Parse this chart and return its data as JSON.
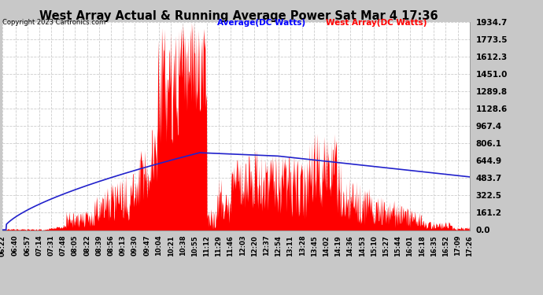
{
  "title": "West Array Actual & Running Average Power Sat Mar 4 17:36",
  "copyright": "Copyright 2023 Cartronics.com",
  "legend_avg": "Average(DC Watts)",
  "legend_west": "West Array(DC Watts)",
  "ymax": 1934.7,
  "ymin": 0.0,
  "yticks": [
    0.0,
    161.2,
    322.5,
    483.7,
    644.9,
    806.1,
    967.4,
    1128.6,
    1289.8,
    1451.0,
    1612.3,
    1773.5,
    1934.7
  ],
  "bg_color": "#c8c8c8",
  "plot_bg_color": "#ffffff",
  "grid_color": "#aaaaaa",
  "red_color": "#ff0000",
  "blue_color": "#2222cc",
  "title_color": "#000000",
  "copyright_color": "#000000",
  "avg_label_color": "#0000ff",
  "west_label_color": "#ff0000",
  "start_hhmm": "06:22",
  "end_hhmm": "17:26",
  "xtick_labels": [
    "06:22",
    "06:40",
    "06:57",
    "07:14",
    "07:31",
    "07:48",
    "08:05",
    "08:22",
    "08:39",
    "08:56",
    "09:13",
    "09:30",
    "09:47",
    "10:04",
    "10:21",
    "10:38",
    "10:55",
    "11:12",
    "11:29",
    "11:46",
    "12:03",
    "12:20",
    "12:37",
    "12:54",
    "13:11",
    "13:28",
    "13:45",
    "14:02",
    "14:19",
    "14:36",
    "14:53",
    "15:10",
    "15:27",
    "15:44",
    "16:01",
    "16:18",
    "16:35",
    "16:52",
    "17:09",
    "17:26"
  ]
}
